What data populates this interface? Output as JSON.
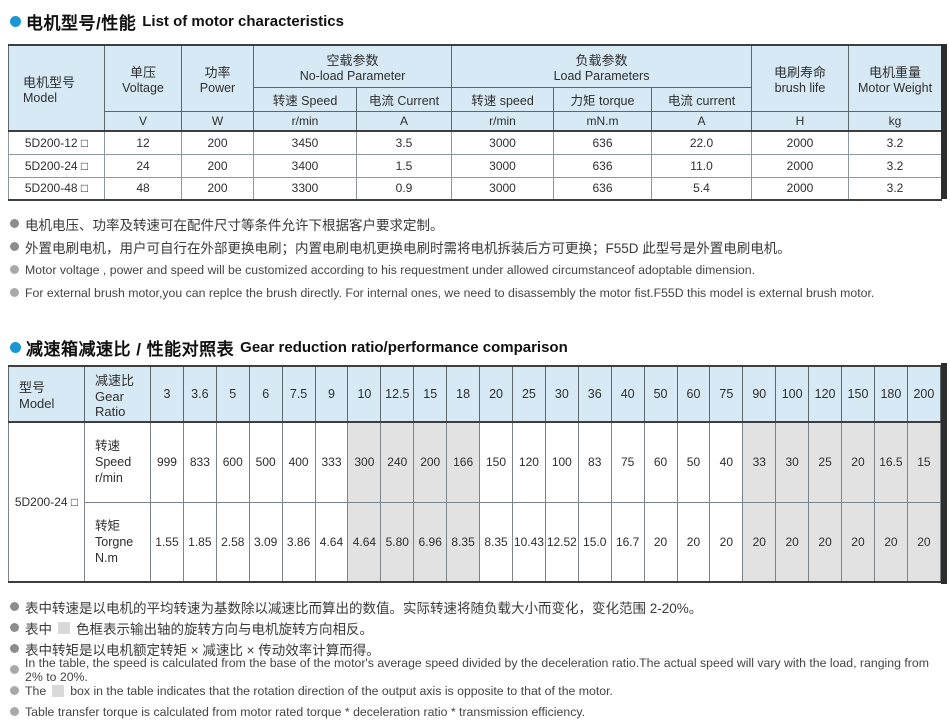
{
  "sections": {
    "motor": {
      "title_zh": "电机型号/性能",
      "title_en": "List of motor characteristics"
    },
    "gear": {
      "title_zh": "减速箱减速比 / 性能对照表",
      "title_en": "Gear reduction ratio/performance comparison"
    }
  },
  "motor_table": {
    "headers": {
      "model_zh": "电机型号",
      "model_en": "Model",
      "voltage_zh": "单压",
      "voltage_en": "Voltage",
      "voltage_unit": "V",
      "power_zh": "功率",
      "power_en": "Power",
      "power_unit": "W",
      "noload_zh": "空载参数",
      "noload_en": "No-load Parameter",
      "noload_speed": "转速 Speed",
      "noload_speed_unit": "r/min",
      "noload_current": "电流 Current",
      "noload_current_unit": "A",
      "load_zh": "负载参数",
      "load_en": "Load Parameters",
      "load_speed": "转速 speed",
      "load_speed_unit": "r/min",
      "load_torque": "力矩 torque",
      "load_torque_unit": "mN.m",
      "load_current": "电流 current",
      "load_current_unit": "A",
      "brush_zh": "电刷寿命",
      "brush_en": "brush life",
      "brush_unit": "H",
      "weight_zh": "电机重量",
      "weight_en": "Motor Weight",
      "weight_unit": "kg"
    },
    "rows": [
      {
        "model": "5D200-12 □",
        "values": [
          "12",
          "200",
          "3450",
          "3.5",
          "3000",
          "636",
          "22.0",
          "2000",
          "3.2"
        ]
      },
      {
        "model": "5D200-24 □",
        "values": [
          "24",
          "200",
          "3400",
          "1.5",
          "3000",
          "636",
          "11.0",
          "2000",
          "3.2"
        ]
      },
      {
        "model": "5D200-48 □",
        "values": [
          "48",
          "200",
          "3300",
          "0.9",
          "3000",
          "636",
          "5.4",
          "2000",
          "3.2"
        ]
      }
    ]
  },
  "motor_notes": [
    {
      "lang": "zh",
      "pre": "电机电压、功率及转速可在配件尺寸等条件允许下根据客户要求定制。",
      "box": false,
      "post": ""
    },
    {
      "lang": "zh",
      "pre": "外置电刷电机，用户可自行在外部更换电刷；内置电刷电机更换电刷时需将电机拆装后方可更换；F55D 此型号是外置电刷电机。",
      "box": false,
      "post": ""
    },
    {
      "lang": "en",
      "pre": "Motor voltage ,  power and speed will be customized according to his requestment under allowed circumstanceof adoptable dimension.",
      "box": false,
      "post": ""
    },
    {
      "lang": "en",
      "pre": "For external brush motor,you can replce the brush directly. For internal ones, we need to disassembly the motor fist.F55D this model is external brush motor.",
      "box": false,
      "post": ""
    }
  ],
  "gear_table": {
    "model_header_zh": "型号",
    "model_header_en": "Model",
    "ratio_header_zh": "减速比",
    "ratio_header_en": "Gear Ratio",
    "ratios": [
      "3",
      "3.6",
      "5",
      "6",
      "7.5",
      "9",
      "10",
      "12.5",
      "15",
      "18",
      "20",
      "25",
      "30",
      "36",
      "40",
      "50",
      "60",
      "75",
      "90",
      "100",
      "120",
      "150",
      "180",
      "200"
    ],
    "model": "5D200-24 □",
    "speed_label_zh": "转速",
    "speed_label_en": "Speed",
    "speed_label_unit": "r/min",
    "torque_label_zh": "转矩",
    "torque_label_en": "Torgne",
    "torque_label_unit": "N.m",
    "speed_values": [
      "999",
      "833",
      "600",
      "500",
      "400",
      "333",
      "300",
      "240",
      "200",
      "166",
      "150",
      "120",
      "100",
      "83",
      "75",
      "60",
      "50",
      "40",
      "33",
      "30",
      "25",
      "20",
      "16.5",
      "15"
    ],
    "torque_values": [
      "1.55",
      "1.85",
      "2.58",
      "3.09",
      "3.86",
      "4.64",
      "4.64",
      "5.80",
      "6.96",
      "8.35",
      "8.35",
      "10.43",
      "12.52",
      "15.0",
      "16.7",
      "20",
      "20",
      "20",
      "20",
      "20",
      "20",
      "20",
      "20",
      "20"
    ],
    "shaded_column_indexes": [
      6,
      7,
      8,
      9,
      18,
      19,
      20,
      21,
      22,
      23
    ]
  },
  "gear_notes": [
    {
      "lang": "zh",
      "pre": "表中转速是以电机的平均转速为基数除以减速比而算出的数值。实际转速将随负载大小而变化，变化范围 2-20%。",
      "box": false,
      "post": ""
    },
    {
      "lang": "zh",
      "pre": "表中",
      "box": true,
      "post": "色框表示输出轴的旋转方向与电机旋转方向相反。"
    },
    {
      "lang": "zh",
      "pre": "表中转矩是以电机额定转矩 × 减速比 × 传动效率计算而得。",
      "box": false,
      "post": ""
    },
    {
      "lang": "en",
      "pre": "In the table, the speed is calculated from the base of the motor's average speed  divided by the deceleration ratio.The actual speed will vary with the load, ranging from 2% to 20%.",
      "box": false,
      "post": ""
    },
    {
      "lang": "en",
      "pre": "The",
      "box": true,
      "post": "box in the table indicates that the rotation direction of the output axis is opposite to that of the motor."
    },
    {
      "lang": "en",
      "pre": "Table transfer torque is calculated from motor rated torque * deceleration ratio * transmission efficiency.",
      "box": false,
      "post": ""
    }
  ],
  "colors": {
    "header_blue": "#d7e9f5",
    "shaded_gray": "#e2e2e2",
    "title_bullet_blue": "#1899d5",
    "note_bullet_zh": "#8c8c8c",
    "note_bullet_en": "#a9a9a9",
    "border_dark": "#3e3e3e",
    "edge_strip": "#2d2d2d"
  }
}
